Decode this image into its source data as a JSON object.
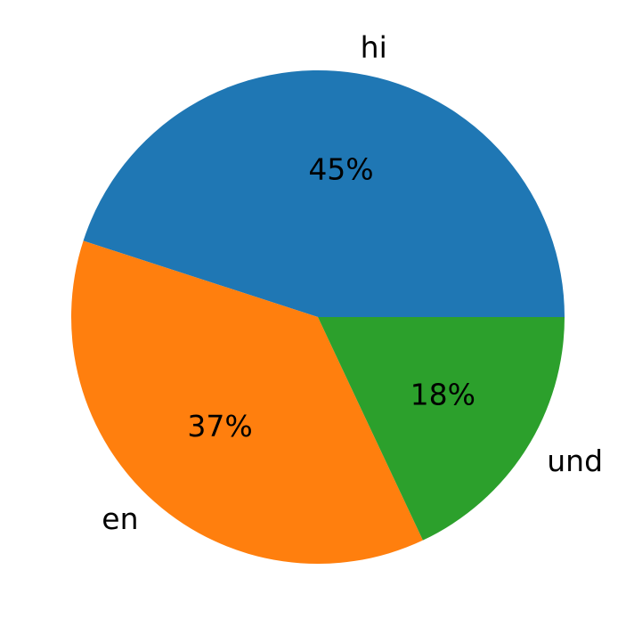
{
  "chart_data": {
    "type": "pie",
    "title": "",
    "categories": [
      "hi",
      "en",
      "und"
    ],
    "values": [
      45,
      37,
      18
    ],
    "percent_labels": [
      "45%",
      "37%",
      "18%"
    ],
    "colors": [
      "#1f77b4",
      "#ff7f0e",
      "#2ca02c"
    ],
    "start_angle_deg": 0,
    "direction": "counterclockwise",
    "legend": "none",
    "grid": false
  }
}
